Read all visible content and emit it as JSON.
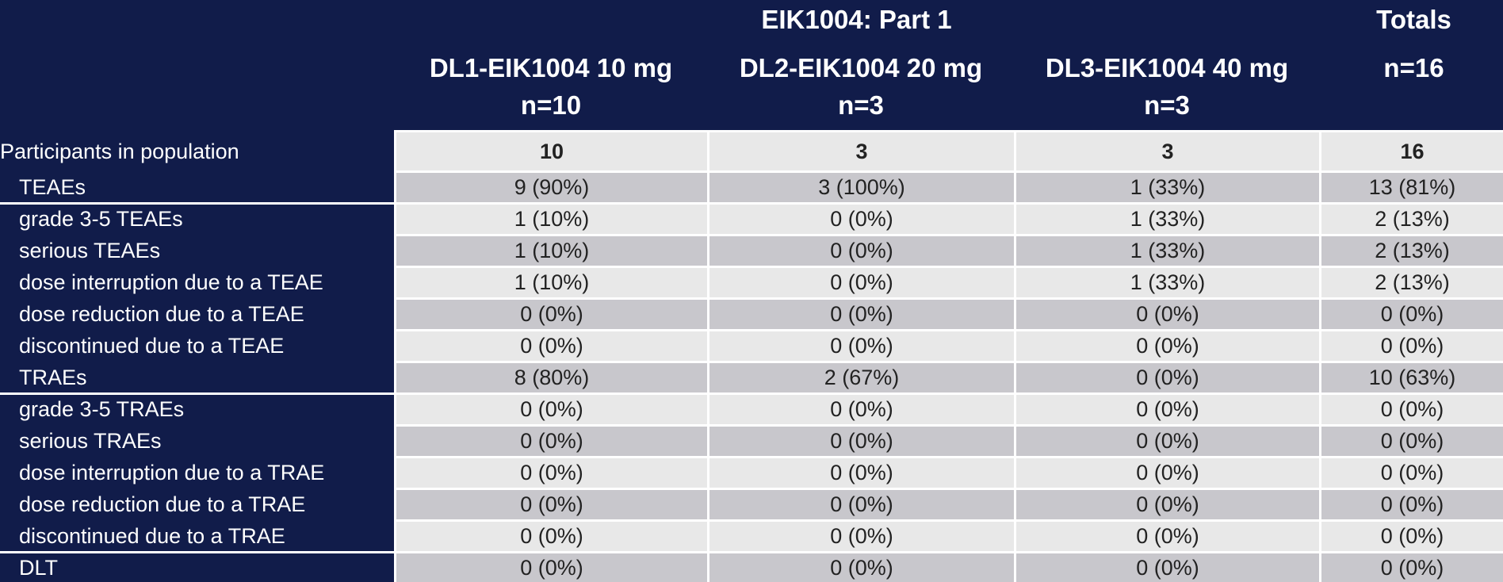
{
  "header": {
    "group": "EIK1004: Part 1",
    "totals": "Totals",
    "totals_n": "n=16",
    "columns": [
      {
        "name": "DL1-EIK1004 10 mg",
        "n": "n=10"
      },
      {
        "name": "DL2-EIK1004 20 mg",
        "n": "n=3"
      },
      {
        "name": "DL3-EIK1004 40 mg",
        "n": "n=3"
      }
    ]
  },
  "table": {
    "rows": [
      {
        "label": "Participants in population",
        "values": [
          "10",
          "3",
          "3",
          "16"
        ]
      },
      {
        "label": "TEAEs",
        "values": [
          "9 (90%)",
          "3 (100%)",
          "1 (33%)",
          "13 (81%)"
        ]
      },
      {
        "label": "grade 3-5 TEAEs",
        "values": [
          "1 (10%)",
          "0 (0%)",
          "1 (33%)",
          "2 (13%)"
        ]
      },
      {
        "label": "serious TEAEs",
        "values": [
          "1 (10%)",
          "0 (0%)",
          "1 (33%)",
          "2 (13%)"
        ]
      },
      {
        "label": "dose interruption due to a TEAE",
        "values": [
          "1 (10%)",
          "0 (0%)",
          "1 (33%)",
          "2 (13%)"
        ]
      },
      {
        "label": "dose reduction due to a TEAE",
        "values": [
          "0 (0%)",
          "0 (0%)",
          "0 (0%)",
          "0 (0%)"
        ]
      },
      {
        "label": "discontinued due to a TEAE",
        "values": [
          "0 (0%)",
          "0 (0%)",
          "0 (0%)",
          "0 (0%)"
        ]
      },
      {
        "label": "TRAEs",
        "values": [
          "8 (80%)",
          "2 (67%)",
          "0 (0%)",
          "10 (63%)"
        ]
      },
      {
        "label": "grade 3-5 TRAEs",
        "values": [
          "0 (0%)",
          "0 (0%)",
          "0 (0%)",
          "0 (0%)"
        ]
      },
      {
        "label": "serious TRAEs",
        "values": [
          "0 (0%)",
          "0 (0%)",
          "0 (0%)",
          "0 (0%)"
        ]
      },
      {
        "label": "dose interruption due to a TRAE",
        "values": [
          "0 (0%)",
          "0 (0%)",
          "0 (0%)",
          "0 (0%)"
        ]
      },
      {
        "label": "dose reduction due to a TRAE",
        "values": [
          "0 (0%)",
          "0 (0%)",
          "0 (0%)",
          "0 (0%)"
        ]
      },
      {
        "label": "discontinued due to a TRAE",
        "values": [
          "0 (0%)",
          "0 (0%)",
          "0 (0%)",
          "0 (0%)"
        ]
      },
      {
        "label": "DLT",
        "values": [
          "0 (0%)",
          "0 (0%)",
          "0 (0%)",
          "0 (0%)"
        ]
      }
    ]
  }
}
